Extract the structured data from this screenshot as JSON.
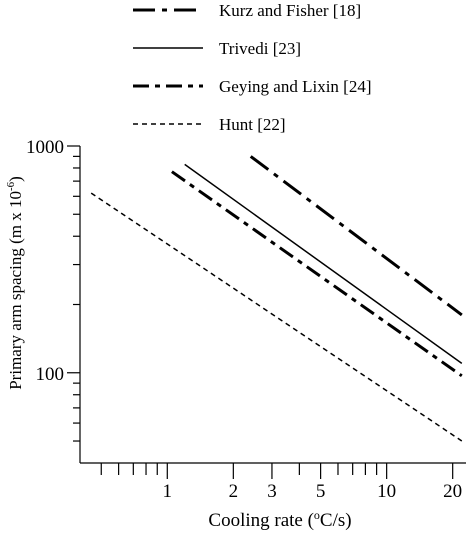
{
  "chart_data": {
    "type": "line",
    "xlabel": "Cooling rate (",
    "xlabel_sup": "o",
    "xlabel_tail": "C/s)",
    "ylabel": "Primary arm spacing (m x 10",
    "ylabel_sup": "-6",
    "ylabel_tail": ")",
    "x_scale": "log",
    "y_scale": "log",
    "xlim": [
      0.4,
      23
    ],
    "ylim": [
      40,
      1000
    ],
    "x_ticks": [
      {
        "v": 1,
        "label": "1"
      },
      {
        "v": 2,
        "label": "2"
      },
      {
        "v": 3,
        "label": "3"
      },
      {
        "v": 5,
        "label": "5"
      },
      {
        "v": 10,
        "label": "10"
      },
      {
        "v": 20,
        "label": "20"
      }
    ],
    "x_minor_ticks": [
      0.5,
      0.6,
      0.7,
      0.8,
      0.9,
      4,
      6,
      7,
      8,
      9
    ],
    "y_ticks": [
      {
        "v": 100,
        "label": "100"
      },
      {
        "v": 1000,
        "label": "1000"
      }
    ],
    "y_minor_ticks": [
      50,
      60,
      70,
      80,
      90,
      200,
      300,
      400,
      500,
      600,
      700,
      800,
      900
    ],
    "grid": false,
    "legend_position": "top",
    "series": [
      {
        "name": "Kurz and Fisher [18]",
        "dash": "long-dash-dot",
        "width": 3,
        "x": [
          2.4,
          22
        ],
        "y": [
          900,
          180
        ]
      },
      {
        "name": "Trivedi [23]",
        "dash": "solid",
        "width": 1.5,
        "x": [
          1.2,
          22
        ],
        "y": [
          830,
          110
        ]
      },
      {
        "name": "Geying and Lixin [24]",
        "dash": "dash-dot",
        "width": 3,
        "x": [
          1.05,
          22
        ],
        "y": [
          770,
          97
        ]
      },
      {
        "name": "Hunt [22]",
        "dash": "short-dash",
        "width": 1.5,
        "x": [
          0.45,
          22
        ],
        "y": [
          620,
          50
        ]
      }
    ]
  }
}
